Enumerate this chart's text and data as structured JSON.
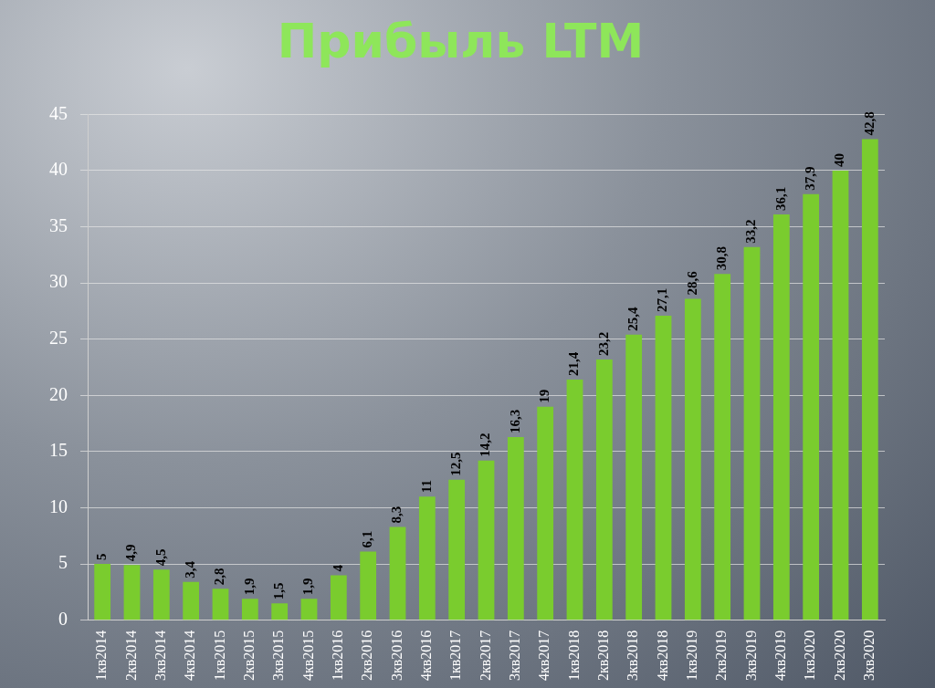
{
  "chart_data": {
    "type": "bar",
    "title": "Прибыль LTM",
    "categories": [
      "1кв2014",
      "2кв2014",
      "3кв2014",
      "4кв2014",
      "1кв2015",
      "2кв2015",
      "3кв2015",
      "4кв2015",
      "1кв2016",
      "2кв2016",
      "3кв2016",
      "4кв2016",
      "1кв2017",
      "2кв2017",
      "3кв2017",
      "4кв2017",
      "1кв2018",
      "2кв2018",
      "3кв2018",
      "4кв2018",
      "1кв2019",
      "2кв2019",
      "3кв2019",
      "4кв2019",
      "1кв2020",
      "2кв2020",
      "3кв2020"
    ],
    "values": [
      5,
      4.9,
      4.5,
      3.4,
      2.8,
      1.9,
      1.5,
      1.9,
      4,
      6.1,
      8.3,
      11,
      12.5,
      14.2,
      16.3,
      19,
      21.4,
      23.2,
      25.4,
      27.1,
      28.6,
      30.8,
      33.2,
      36.1,
      37.9,
      40,
      42.8
    ],
    "value_labels": [
      "5",
      "4,9",
      "4,5",
      "3,4",
      "2,8",
      "1,9",
      "1,5",
      "1,9",
      "4",
      "6,1",
      "8,3",
      "11",
      "12,5",
      "14,2",
      "16,3",
      "19",
      "21,4",
      "23,2",
      "25,4",
      "27,1",
      "28,6",
      "30,8",
      "33,2",
      "36,1",
      "37,9",
      "40",
      "42,8"
    ],
    "color": "#7acc2e",
    "ylim": [
      0,
      45
    ],
    "yticks": [
      0,
      5,
      10,
      15,
      20,
      25,
      30,
      35,
      40,
      45
    ],
    "grid": "y",
    "legend": false
  }
}
